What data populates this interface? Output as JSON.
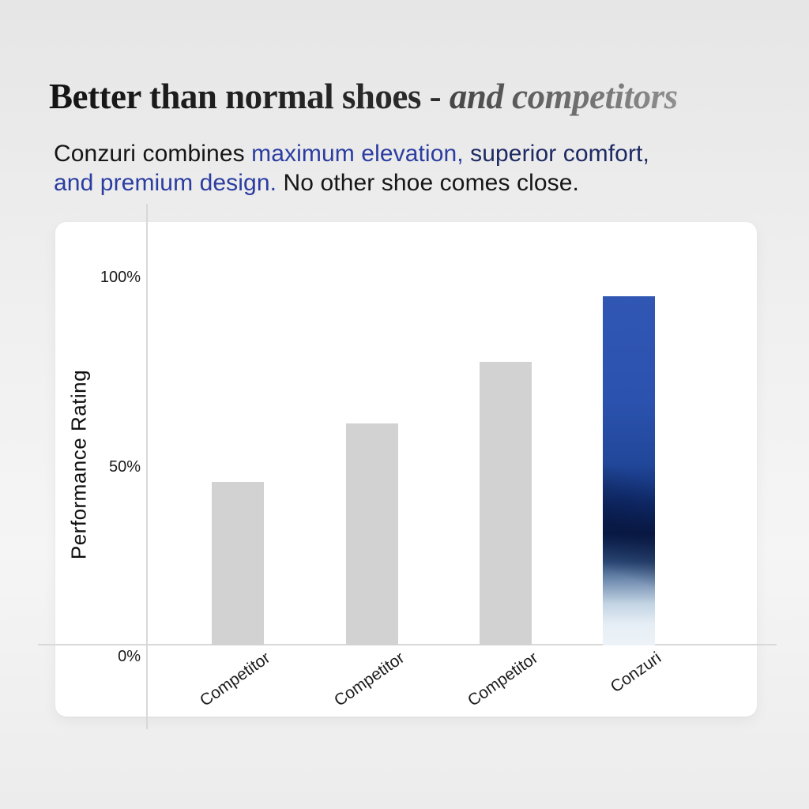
{
  "headline": {
    "main": "Better than normal shoes - ",
    "emphasis": "and competitors"
  },
  "subtitle": {
    "lines": [
      {
        "segments": [
          {
            "text": "Conzuri combines ",
            "color": "ink"
          },
          {
            "text": "maximum elevation, ",
            "color": "blue"
          },
          {
            "text": "superior comfort,",
            "color": "navy"
          }
        ]
      },
      {
        "segments": [
          {
            "text": "and premium design.",
            "color": "blue"
          },
          {
            "text": " No other shoe comes close.",
            "color": "ink"
          }
        ]
      }
    ]
  },
  "colors": {
    "ink": "#161616",
    "blue": "#2b3da0",
    "navy": "#1d2a63",
    "axis_line": "#d8d8d8",
    "bar_gray": "#d2d2d2"
  },
  "chart_data": {
    "type": "bar",
    "title": "",
    "xlabel": "",
    "ylabel": "Performance Rating",
    "ylim": [
      0,
      100
    ],
    "grid": false,
    "legend": false,
    "categories": [
      "Competitor",
      "Competitor",
      "Competitor",
      "Conzuri"
    ],
    "values": [
      45,
      61,
      78,
      96
    ],
    "yticks": [
      {
        "label": "0%",
        "value": 0
      },
      {
        "label": "50%",
        "value": 50
      },
      {
        "label": "100%",
        "value": 100
      }
    ],
    "bar_color_default": "#d2d2d2",
    "highlight_index": 3,
    "highlight_gradient_stops": [
      "#3057b3 0%",
      "#2b52ae 30%",
      "#21479a 48%",
      "#0e2a6b 60%",
      "#081c4c 68%",
      "#2c4a78 76%",
      "#6d89ad 81%",
      "#c2d3e3 88%",
      "#e6eef5 94%",
      "#edf3f8 100%"
    ],
    "highlight_overlay_stops": [
      "rgba(8,18,52,0) 50%",
      "rgba(8,18,52,0.45) 66%",
      "rgba(8,18,52,0) 79%"
    ]
  }
}
